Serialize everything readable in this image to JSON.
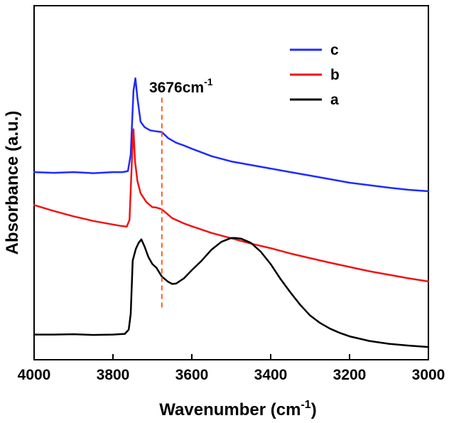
{
  "chart_data": {
    "type": "line",
    "title": "",
    "xlabel": "Wavenumber (cm",
    "xlabel_sup": "-1",
    "xlabel_close": ")",
    "ylabel": "Absorbance (a.u.)",
    "xlim": [
      4000,
      3000
    ],
    "ylim": [
      0,
      1
    ],
    "x_ticks": [
      4000,
      3800,
      3600,
      3400,
      3200,
      3000
    ],
    "x_tick_labels": [
      "4000",
      "3800",
      "3600",
      "3400",
      "3200",
      "3000"
    ],
    "y_ticks_shown": false,
    "legend_position": "top-right",
    "annotations": [
      {
        "text": "3676cm",
        "sup": "-1",
        "x": 3676,
        "line_style": "dashed",
        "color": "#ff5a1f",
        "y_range": [
          0.14,
          0.74
        ]
      }
    ],
    "series": [
      {
        "name": "c",
        "color": "#1f2bff",
        "points": [
          [
            4000,
            0.53
          ],
          [
            3950,
            0.528
          ],
          [
            3900,
            0.53
          ],
          [
            3850,
            0.527
          ],
          [
            3800,
            0.53
          ],
          [
            3775,
            0.53
          ],
          [
            3762,
            0.533
          ],
          [
            3755,
            0.58
          ],
          [
            3748,
            0.76
          ],
          [
            3743,
            0.795
          ],
          [
            3738,
            0.74
          ],
          [
            3730,
            0.672
          ],
          [
            3720,
            0.657
          ],
          [
            3706,
            0.648
          ],
          [
            3690,
            0.645
          ],
          [
            3676,
            0.643
          ],
          [
            3660,
            0.626
          ],
          [
            3640,
            0.613
          ],
          [
            3620,
            0.605
          ],
          [
            3600,
            0.596
          ],
          [
            3550,
            0.575
          ],
          [
            3500,
            0.56
          ],
          [
            3450,
            0.55
          ],
          [
            3400,
            0.54
          ],
          [
            3350,
            0.53
          ],
          [
            3300,
            0.52
          ],
          [
            3250,
            0.51
          ],
          [
            3200,
            0.5
          ],
          [
            3150,
            0.493
          ],
          [
            3100,
            0.486
          ],
          [
            3050,
            0.48
          ],
          [
            3000,
            0.476
          ]
        ]
      },
      {
        "name": "b",
        "color": "#f01414",
        "points": [
          [
            4000,
            0.437
          ],
          [
            3950,
            0.42
          ],
          [
            3900,
            0.405
          ],
          [
            3850,
            0.392
          ],
          [
            3800,
            0.382
          ],
          [
            3780,
            0.378
          ],
          [
            3765,
            0.376
          ],
          [
            3758,
            0.395
          ],
          [
            3752,
            0.56
          ],
          [
            3748,
            0.651
          ],
          [
            3744,
            0.56
          ],
          [
            3738,
            0.505
          ],
          [
            3730,
            0.47
          ],
          [
            3715,
            0.445
          ],
          [
            3700,
            0.431
          ],
          [
            3690,
            0.43
          ],
          [
            3676,
            0.425
          ],
          [
            3650,
            0.4
          ],
          [
            3620,
            0.385
          ],
          [
            3600,
            0.377
          ],
          [
            3550,
            0.358
          ],
          [
            3500,
            0.343
          ],
          [
            3450,
            0.328
          ],
          [
            3400,
            0.315
          ],
          [
            3350,
            0.3
          ],
          [
            3300,
            0.287
          ],
          [
            3250,
            0.274
          ],
          [
            3200,
            0.262
          ],
          [
            3150,
            0.25
          ],
          [
            3100,
            0.24
          ],
          [
            3050,
            0.23
          ],
          [
            3000,
            0.221
          ]
        ]
      },
      {
        "name": "a",
        "color": "#000000",
        "points": [
          [
            4000,
            0.071
          ],
          [
            3950,
            0.071
          ],
          [
            3900,
            0.072
          ],
          [
            3850,
            0.07
          ],
          [
            3800,
            0.071
          ],
          [
            3770,
            0.073
          ],
          [
            3760,
            0.085
          ],
          [
            3755,
            0.13
          ],
          [
            3750,
            0.28
          ],
          [
            3742,
            0.313
          ],
          [
            3735,
            0.33
          ],
          [
            3728,
            0.34
          ],
          [
            3720,
            0.32
          ],
          [
            3710,
            0.29
          ],
          [
            3700,
            0.27
          ],
          [
            3690,
            0.26
          ],
          [
            3676,
            0.235
          ],
          [
            3660,
            0.22
          ],
          [
            3650,
            0.214
          ],
          [
            3640,
            0.215
          ],
          [
            3620,
            0.23
          ],
          [
            3600,
            0.253
          ],
          [
            3575,
            0.28
          ],
          [
            3550,
            0.311
          ],
          [
            3525,
            0.333
          ],
          [
            3500,
            0.344
          ],
          [
            3490,
            0.344
          ],
          [
            3475,
            0.342
          ],
          [
            3450,
            0.33
          ],
          [
            3425,
            0.305
          ],
          [
            3400,
            0.27
          ],
          [
            3375,
            0.228
          ],
          [
            3350,
            0.19
          ],
          [
            3325,
            0.155
          ],
          [
            3300,
            0.125
          ],
          [
            3275,
            0.104
          ],
          [
            3250,
            0.088
          ],
          [
            3225,
            0.076
          ],
          [
            3200,
            0.066
          ],
          [
            3150,
            0.053
          ],
          [
            3100,
            0.045
          ],
          [
            3050,
            0.04
          ],
          [
            3000,
            0.036
          ]
        ]
      }
    ]
  }
}
